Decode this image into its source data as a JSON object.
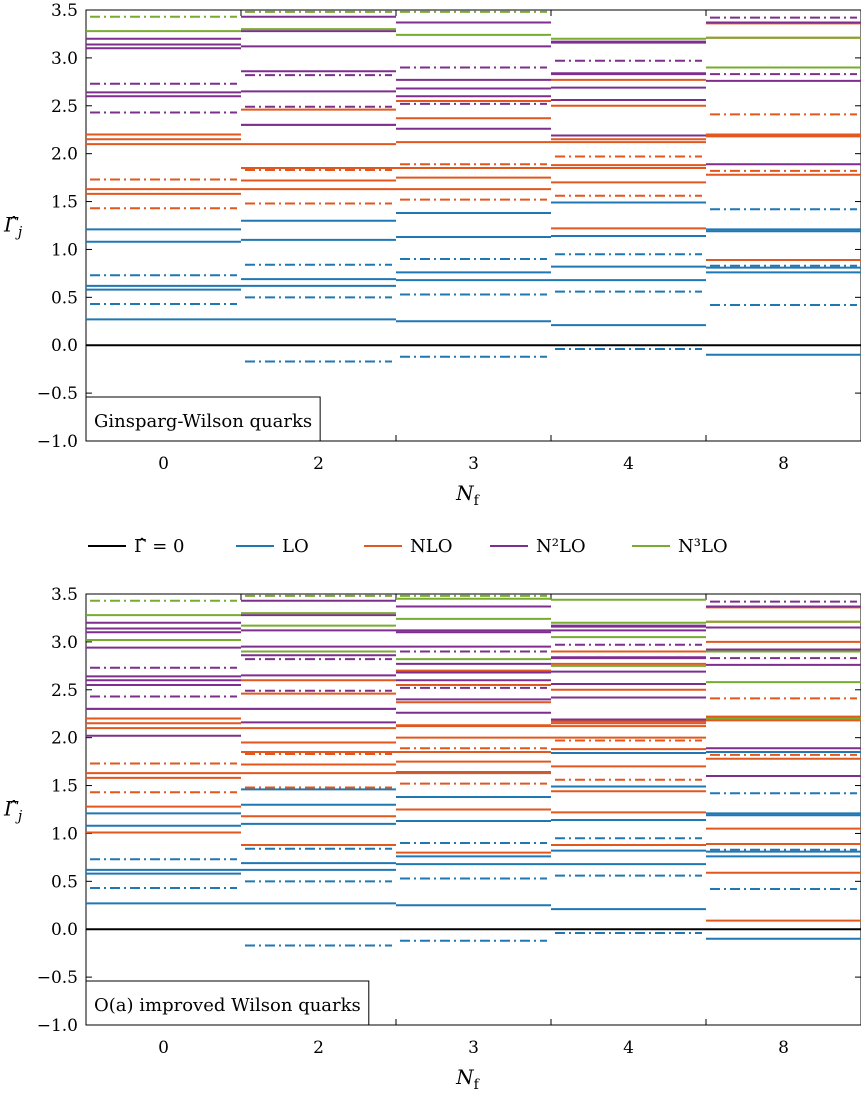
{
  "colors": {
    "zero": "#000000",
    "LO": "#1f77b4",
    "NLO": "#e2571e",
    "N2LO": "#7e2f8e",
    "N3LO": "#77ac30"
  },
  "legend": [
    {
      "key": "zero",
      "label": "Γ̂ = 0"
    },
    {
      "key": "LO",
      "label": "LO"
    },
    {
      "key": "NLO",
      "label": "NLO"
    },
    {
      "key": "N2LO",
      "label": "N²LO"
    },
    {
      "key": "N3LO",
      "label": "N³LO"
    }
  ],
  "chart_data": [
    {
      "type": "line",
      "panel_label": "Ginsparg-Wilson quarks",
      "xlabel": "Nf",
      "ylabel": "Γ̂j",
      "categories": [
        "0",
        "2",
        "3",
        "4",
        "8"
      ],
      "ylim": [
        -1.0,
        3.5
      ],
      "yticks": [
        "3.5",
        "3.0",
        "2.5",
        "2.0",
        "1.5",
        "1.0",
        "0.5",
        "0.0",
        "−0.5",
        "−1.0"
      ],
      "ytick_values": [
        3.5,
        3.0,
        2.5,
        2.0,
        1.5,
        1.0,
        0.5,
        0.0,
        -0.5,
        -1.0
      ],
      "series": [
        {
          "order": "LO",
          "solid": [
            [
              0.27,
              0.58,
              0.62,
              1.08,
              1.21
            ],
            [
              0.27,
              0.62,
              0.69,
              1.1,
              1.3
            ],
            [
              0.25,
              0.68,
              0.76,
              1.13,
              1.38
            ],
            [
              0.21,
              0.68,
              0.82,
              1.14,
              1.49
            ],
            [
              -0.1,
              0.76,
              0.81,
              1.19,
              1.21
            ]
          ],
          "dashed": [
            [
              0.43,
              0.73
            ],
            [
              -0.17,
              0.5,
              0.84
            ],
            [
              -0.12,
              0.53,
              0.9
            ],
            [
              -0.04,
              0.56,
              0.95
            ],
            [
              0.42,
              0.83,
              1.42
            ]
          ]
        },
        {
          "order": "NLO",
          "solid": [
            [
              1.58,
              1.63,
              2.1,
              2.15,
              2.2
            ],
            [
              1.63,
              1.72,
              1.85,
              2.1,
              2.3,
              2.46
            ],
            [
              1.63,
              1.75,
              1.85,
              2.12,
              2.37,
              2.55
            ],
            [
              1.22,
              1.7,
              1.85,
              1.88,
              2.12,
              2.15,
              2.5,
              2.77
            ],
            [
              0.89,
              1.78,
              2.18,
              2.2,
              3.21,
              3.36
            ]
          ],
          "dashed": [
            [
              1.43,
              1.73
            ],
            [
              1.48,
              1.83
            ],
            [
              1.52,
              1.89
            ],
            [
              1.56,
              1.97
            ],
            [
              1.82,
              2.41
            ]
          ]
        },
        {
          "order": "N2LO",
          "solid": [
            [
              2.6,
              2.64,
              3.1,
              3.14,
              3.2
            ],
            [
              2.3,
              2.65,
              2.86,
              3.12,
              3.28,
              3.43
            ],
            [
              2.26,
              2.6,
              2.68,
              2.77,
              3.12,
              3.37
            ],
            [
              2.19,
              2.56,
              2.69,
              2.83,
              2.84,
              3.16,
              3.17
            ],
            [
              1.89,
              2.76,
              3.37
            ]
          ],
          "dashed": [
            [
              2.43,
              2.73
            ],
            [
              2.49,
              2.82
            ],
            [
              2.52,
              2.9
            ],
            [
              2.56,
              2.97
            ],
            [
              2.83,
              3.42
            ]
          ]
        },
        {
          "order": "N3LO",
          "solid": [
            [
              3.28
            ],
            [
              3.3
            ],
            [
              3.24
            ],
            [
              3.2
            ],
            [
              2.9,
              3.21
            ]
          ],
          "dashed": [
            [
              3.43
            ],
            [
              3.48
            ],
            [
              3.48
            ],
            [],
            []
          ]
        }
      ],
      "zero_line": 0
    },
    {
      "type": "line",
      "panel_label": "O(a) improved Wilson quarks",
      "xlabel": "Nf",
      "ylabel": "Γ̂j",
      "categories": [
        "0",
        "2",
        "3",
        "4",
        "8"
      ],
      "ylim": [
        -1.0,
        3.5
      ],
      "yticks": [
        "3.5",
        "3.0",
        "2.5",
        "2.0",
        "1.5",
        "1.0",
        "0.5",
        "0.0",
        "−0.5",
        "−1.0"
      ],
      "ytick_values": [
        3.5,
        3.0,
        2.5,
        2.0,
        1.5,
        1.0,
        0.5,
        0.0,
        -0.5,
        -1.0
      ],
      "series": [
        {
          "order": "LO",
          "solid": [
            [
              0.27,
              0.58,
              0.62,
              1.08,
              1.21
            ],
            [
              0.27,
              0.62,
              0.69,
              1.1,
              1.3,
              1.46
            ],
            [
              0.25,
              0.68,
              0.76,
              1.13,
              1.38,
              1.64
            ],
            [
              0.21,
              0.68,
              0.82,
              1.14,
              1.49,
              1.84
            ],
            [
              -0.1,
              0.76,
              0.81,
              1.19,
              1.21,
              1.85
            ]
          ],
          "dashed": [
            [
              0.43,
              0.73
            ],
            [
              -0.17,
              0.5,
              0.84
            ],
            [
              -0.12,
              0.53,
              0.9
            ],
            [
              -0.04,
              0.56,
              0.95
            ],
            [
              0.42,
              0.83,
              1.42
            ]
          ]
        },
        {
          "order": "NLO",
          "solid": [
            [
              1.01,
              1.28,
              1.58,
              1.63,
              2.1,
              2.15,
              2.2,
              2.3
            ],
            [
              0.88,
              1.18,
              1.63,
              1.72,
              1.85,
              1.95,
              2.1,
              2.3,
              2.46,
              2.6
            ],
            [
              0.8,
              1.25,
              1.63,
              1.75,
              1.85,
              2.0,
              2.12,
              2.13,
              2.37,
              2.55,
              2.7
            ],
            [
              0.88,
              1.22,
              1.44,
              1.7,
              1.88,
              2.0,
              2.12,
              2.15,
              2.17,
              2.5,
              2.77,
              2.9
            ],
            [
              0.09,
              0.59,
              0.89,
              1.05,
              1.78,
              2.18,
              2.2,
              2.22,
              3.0,
              3.21,
              3.36
            ]
          ],
          "dashed": [
            [
              1.43,
              1.73
            ],
            [
              1.48,
              1.83
            ],
            [
              1.52,
              1.89
            ],
            [
              1.56,
              1.97
            ],
            [
              1.82,
              2.41
            ]
          ]
        },
        {
          "order": "N2LO",
          "solid": [
            [
              2.02,
              2.3,
              2.55,
              2.6,
              2.64,
              2.94,
              3.1,
              3.14,
              3.2
            ],
            [
              2.16,
              2.3,
              2.65,
              2.86,
              2.95,
              3.12,
              3.28,
              3.43
            ],
            [
              2.26,
              2.4,
              2.6,
              2.68,
              2.77,
              2.95,
              3.1,
              3.12,
              3.37
            ],
            [
              2.19,
              2.42,
              2.56,
              2.69,
              2.83,
              2.84,
              3.12,
              3.16,
              3.17
            ],
            [
              1.6,
              1.89,
              2.76,
              2.92,
              3.15,
              3.37
            ]
          ],
          "dashed": [
            [
              2.43,
              2.73
            ],
            [
              2.49,
              2.82
            ],
            [
              2.52,
              2.9
            ],
            [
              2.56,
              2.97
            ],
            [
              2.83,
              3.42
            ]
          ]
        },
        {
          "order": "N3LO",
          "solid": [
            [
              3.02,
              3.28
            ],
            [
              2.9,
              3.17,
              3.3
            ],
            [
              2.82,
              3.24,
              3.45
            ],
            [
              2.75,
              3.05,
              3.2,
              3.44
            ],
            [
              2.2,
              2.58,
              2.9,
              3.21
            ]
          ],
          "dashed": [
            [
              3.43
            ],
            [
              3.48
            ],
            [
              3.48
            ],
            [],
            []
          ]
        }
      ],
      "zero_line": 0
    }
  ]
}
